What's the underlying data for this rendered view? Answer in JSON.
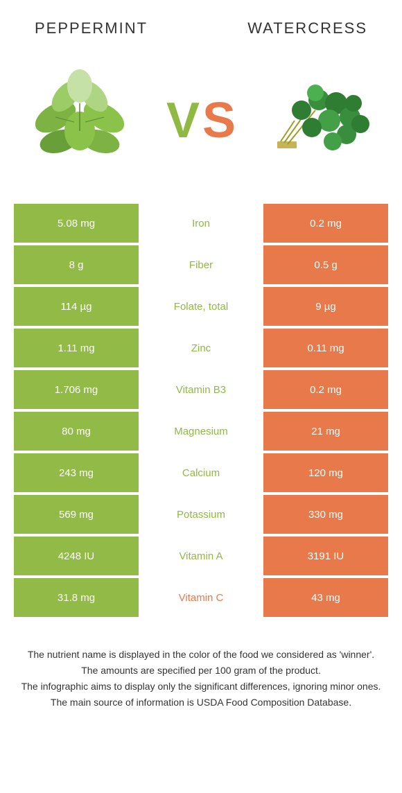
{
  "header": {
    "left_title": "PEPPERMINT",
    "right_title": "WATERCRESS"
  },
  "vs": {
    "v": "V",
    "s": "S"
  },
  "colors": {
    "green": "#92ba46",
    "orange": "#e8794a",
    "grey": "#808080",
    "text": "#333333"
  },
  "rows": [
    {
      "left": "5.08 mg",
      "mid": "Iron",
      "right": "0.2 mg",
      "winner": "left"
    },
    {
      "left": "8 g",
      "mid": "Fiber",
      "right": "0.5 g",
      "winner": "left"
    },
    {
      "left": "114 µg",
      "mid": "Folate, total",
      "right": "9 µg",
      "winner": "left"
    },
    {
      "left": "1.11 mg",
      "mid": "Zinc",
      "right": "0.11 mg",
      "winner": "left"
    },
    {
      "left": "1.706 mg",
      "mid": "Vitamin B3",
      "right": "0.2 mg",
      "winner": "left"
    },
    {
      "left": "80 mg",
      "mid": "Magnesium",
      "right": "21 mg",
      "winner": "left"
    },
    {
      "left": "243 mg",
      "mid": "Calcium",
      "right": "120 mg",
      "winner": "left"
    },
    {
      "left": "569 mg",
      "mid": "Potassium",
      "right": "330 mg",
      "winner": "left"
    },
    {
      "left": "4248 IU",
      "mid": "Vitamin A",
      "right": "3191 IU",
      "winner": "left"
    },
    {
      "left": "31.8 mg",
      "mid": "Vitamin C",
      "right": "43 mg",
      "winner": "right"
    }
  ],
  "footer": {
    "line1": "The nutrient name is displayed in the color of the food we considered as 'winner'.",
    "line2": "The amounts are specified per 100 gram of the product.",
    "line3": "The infographic aims to display only the significant differences, ignoring minor ones.",
    "line4": "The main source of information is USDA Food Composition Database."
  }
}
